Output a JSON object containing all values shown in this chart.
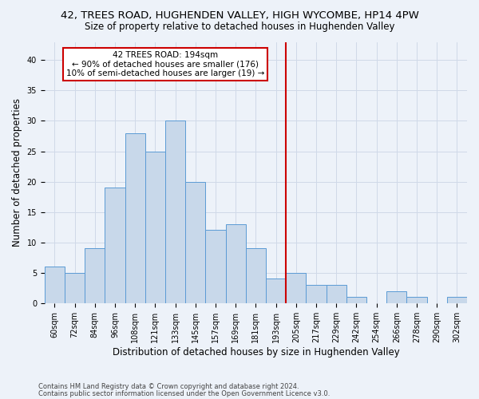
{
  "title": "42, TREES ROAD, HUGHENDEN VALLEY, HIGH WYCOMBE, HP14 4PW",
  "subtitle": "Size of property relative to detached houses in Hughenden Valley",
  "xlabel": "Distribution of detached houses by size in Hughenden Valley",
  "ylabel": "Number of detached properties",
  "footnote1": "Contains HM Land Registry data © Crown copyright and database right 2024.",
  "footnote2": "Contains public sector information licensed under the Open Government Licence v3.0.",
  "bar_labels": [
    "60sqm",
    "72sqm",
    "84sqm",
    "96sqm",
    "108sqm",
    "121sqm",
    "133sqm",
    "145sqm",
    "157sqm",
    "169sqm",
    "181sqm",
    "193sqm",
    "205sqm",
    "217sqm",
    "229sqm",
    "242sqm",
    "254sqm",
    "266sqm",
    "278sqm",
    "290sqm",
    "302sqm"
  ],
  "bar_values": [
    6,
    5,
    9,
    19,
    28,
    25,
    30,
    20,
    12,
    13,
    9,
    4,
    5,
    3,
    3,
    1,
    0,
    2,
    1,
    0,
    1
  ],
  "bar_color": "#c8d8ea",
  "bar_edgecolor": "#5b9bd5",
  "vline_color": "#cc0000",
  "annotation_text": "42 TREES ROAD: 194sqm\n← 90% of detached houses are smaller (176)\n10% of semi-detached houses are larger (19) →",
  "annotation_box_color": "#ffffff",
  "annotation_box_edgecolor": "#cc0000",
  "ylim": [
    0,
    43
  ],
  "yticks": [
    0,
    5,
    10,
    15,
    20,
    25,
    30,
    35,
    40
  ],
  "grid_color": "#d0d9e8",
  "background_color": "#edf2f9",
  "title_fontsize": 9.5,
  "subtitle_fontsize": 8.5,
  "ylabel_fontsize": 8.5,
  "xlabel_fontsize": 8.5,
  "tick_fontsize": 7,
  "annotation_fontsize": 7.5,
  "footnote_fontsize": 6
}
